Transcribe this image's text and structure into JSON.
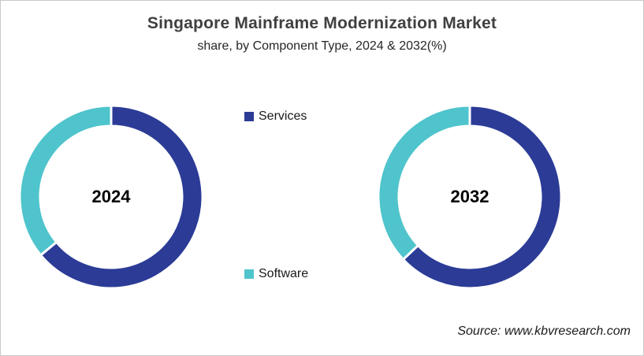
{
  "header": {
    "title": "Singapore Mainframe Modernization Market",
    "subtitle": "share, by Component Type, 2024 & 2032(%)"
  },
  "legend": {
    "items": [
      {
        "label": "Services",
        "color": "#2b3b96"
      },
      {
        "label": "Software",
        "color": "#4fc4cc"
      }
    ]
  },
  "chart_data": {
    "type": "pie",
    "variant": "donut",
    "unit": "%",
    "title": "Singapore Mainframe Modernization Market share, by Component Type, 2024 & 2032(%)",
    "categories": [
      "Services",
      "Software"
    ],
    "colors": [
      "#2b3b96",
      "#4fc4cc"
    ],
    "slice_border_color": "#ffffff",
    "start_angle_deg": 0,
    "direction": "clockwise",
    "legend_position": "center-column",
    "donuts": [
      {
        "label": "2024",
        "values": [
          64,
          36
        ]
      },
      {
        "label": "2032",
        "values": [
          63,
          37
        ]
      }
    ]
  },
  "source": {
    "text": "Source: www.kbvresearch.com"
  }
}
